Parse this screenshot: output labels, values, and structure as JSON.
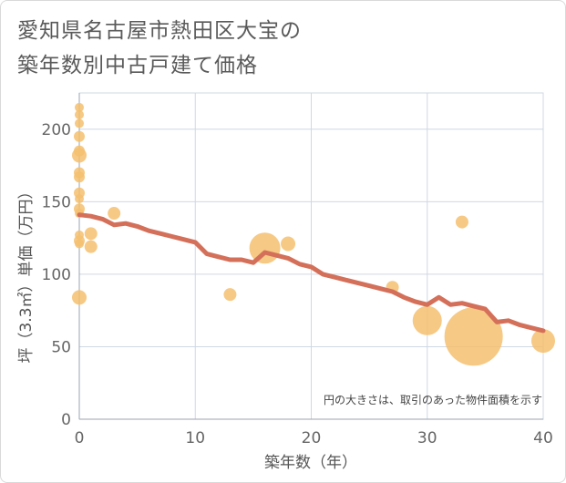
{
  "title_line1": "愛知県名古屋市熱田区大宝の",
  "title_line2": "築年数別中古戸建て価格",
  "note": "円の大きさは、取引のあった物件面積を示す",
  "colors": {
    "line": "#d4705a",
    "bubble": "#f5c06e",
    "grid": "#cfd8e3",
    "background": "#ffffff"
  },
  "chart_data": {
    "type": "scatter",
    "xlabel": "築年数（年）",
    "ylabel": "坪（3.3㎡）単価（万円）",
    "xlim": [
      0,
      40
    ],
    "ylim": [
      0,
      225
    ],
    "xticks": [
      0,
      10,
      20,
      30,
      40
    ],
    "yticks": [
      0,
      50,
      100,
      150,
      200
    ],
    "trend_line": {
      "x": [
        0,
        1,
        2,
        3,
        4,
        5,
        6,
        7,
        8,
        9,
        10,
        11,
        12,
        13,
        14,
        15,
        16,
        17,
        18,
        19,
        20,
        21,
        22,
        23,
        24,
        25,
        26,
        27,
        28,
        29,
        30,
        31,
        32,
        33,
        34,
        35,
        36,
        37,
        38,
        39,
        40
      ],
      "y": [
        141,
        140,
        138,
        134,
        135,
        133,
        130,
        128,
        126,
        124,
        122,
        114,
        112,
        110,
        110,
        108,
        115,
        113,
        111,
        107,
        105,
        100,
        98,
        96,
        94,
        92,
        90,
        88,
        84,
        81,
        79,
        84,
        79,
        80,
        78,
        76,
        67,
        68,
        65,
        63,
        61
      ]
    },
    "bubbles": [
      {
        "x": 0,
        "y": 215,
        "size": 5
      },
      {
        "x": 0,
        "y": 210,
        "size": 5
      },
      {
        "x": 0,
        "y": 204,
        "size": 5
      },
      {
        "x": 0,
        "y": 195,
        "size": 6
      },
      {
        "x": 0,
        "y": 185,
        "size": 6
      },
      {
        "x": 0,
        "y": 182,
        "size": 8
      },
      {
        "x": 0,
        "y": 170,
        "size": 6
      },
      {
        "x": 0,
        "y": 167,
        "size": 6
      },
      {
        "x": 0,
        "y": 156,
        "size": 6
      },
      {
        "x": 0,
        "y": 152,
        "size": 5
      },
      {
        "x": 0,
        "y": 145,
        "size": 6
      },
      {
        "x": 0,
        "y": 142,
        "size": 5
      },
      {
        "x": 0,
        "y": 127,
        "size": 5
      },
      {
        "x": 0,
        "y": 123,
        "size": 6
      },
      {
        "x": 0,
        "y": 121,
        "size": 5
      },
      {
        "x": 1,
        "y": 128,
        "size": 7
      },
      {
        "x": 1,
        "y": 119,
        "size": 7
      },
      {
        "x": 3,
        "y": 142,
        "size": 7
      },
      {
        "x": 0,
        "y": 84,
        "size": 8
      },
      {
        "x": 13,
        "y": 86,
        "size": 7
      },
      {
        "x": 16,
        "y": 118,
        "size": 17
      },
      {
        "x": 18,
        "y": 121,
        "size": 8
      },
      {
        "x": 27,
        "y": 91,
        "size": 7
      },
      {
        "x": 30,
        "y": 68,
        "size": 16
      },
      {
        "x": 33,
        "y": 136,
        "size": 7
      },
      {
        "x": 34,
        "y": 57,
        "size": 32
      },
      {
        "x": 40,
        "y": 54,
        "size": 13
      }
    ]
  }
}
